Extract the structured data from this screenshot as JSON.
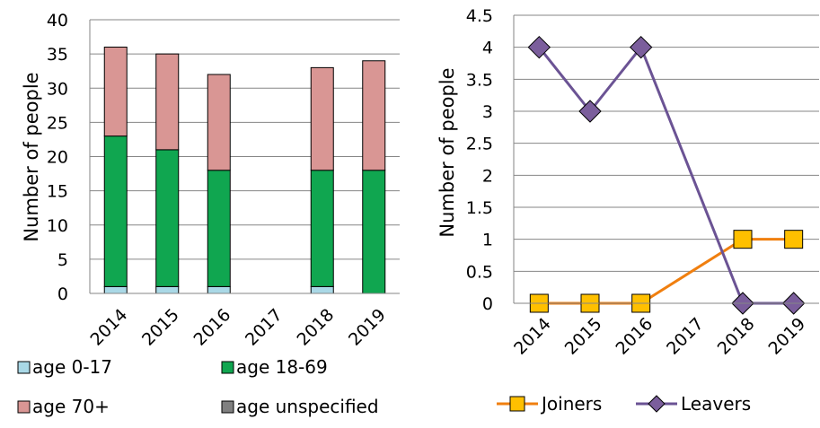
{
  "chart_data": [
    {
      "type": "bar",
      "stacked": true,
      "categories": [
        "2014",
        "2015",
        "2016",
        "2017",
        "2018",
        "2019"
      ],
      "series": [
        {
          "name": "age 0-17",
          "color": "#a9d8e6",
          "values": [
            1,
            1,
            1,
            0,
            1,
            0
          ]
        },
        {
          "name": "age 18-69",
          "color": "#10a650",
          "values": [
            22,
            20,
            17,
            0,
            17,
            18
          ]
        },
        {
          "name": "age 70+",
          "color": "#d99694",
          "values": [
            13,
            14,
            14,
            0,
            15,
            16
          ]
        },
        {
          "name": "age unspecified",
          "color": "#808080",
          "values": [
            0,
            0,
            0,
            0,
            0,
            0
          ]
        }
      ],
      "ylabel": "Number of people",
      "ylim": [
        0,
        40
      ],
      "yticks": [
        "0",
        "5",
        "10",
        "15",
        "20",
        "25",
        "30",
        "35",
        "40"
      ],
      "grid": true,
      "legend_placement": "bottom"
    },
    {
      "type": "line",
      "categories": [
        "2014",
        "2015",
        "2016",
        "2017",
        "2018",
        "2019"
      ],
      "series": [
        {
          "name": "Joiners",
          "color": "#f07f0f",
          "marker": "square",
          "marker_color": "#ffc000",
          "values": [
            0,
            0,
            0,
            null,
            1,
            1
          ]
        },
        {
          "name": "Leavers",
          "color": "#6b5394",
          "marker": "diamond",
          "marker_color": "#7b5e9c",
          "values": [
            4,
            3,
            4,
            null,
            0,
            0
          ]
        }
      ],
      "ylabel": "Number of people",
      "ylim": [
        0,
        4.5
      ],
      "yticks": [
        "0",
        "0.5",
        "1",
        "1.5",
        "2",
        "2.5",
        "3",
        "3.5",
        "4",
        "4.5"
      ],
      "grid": true,
      "legend_placement": "bottom"
    }
  ]
}
